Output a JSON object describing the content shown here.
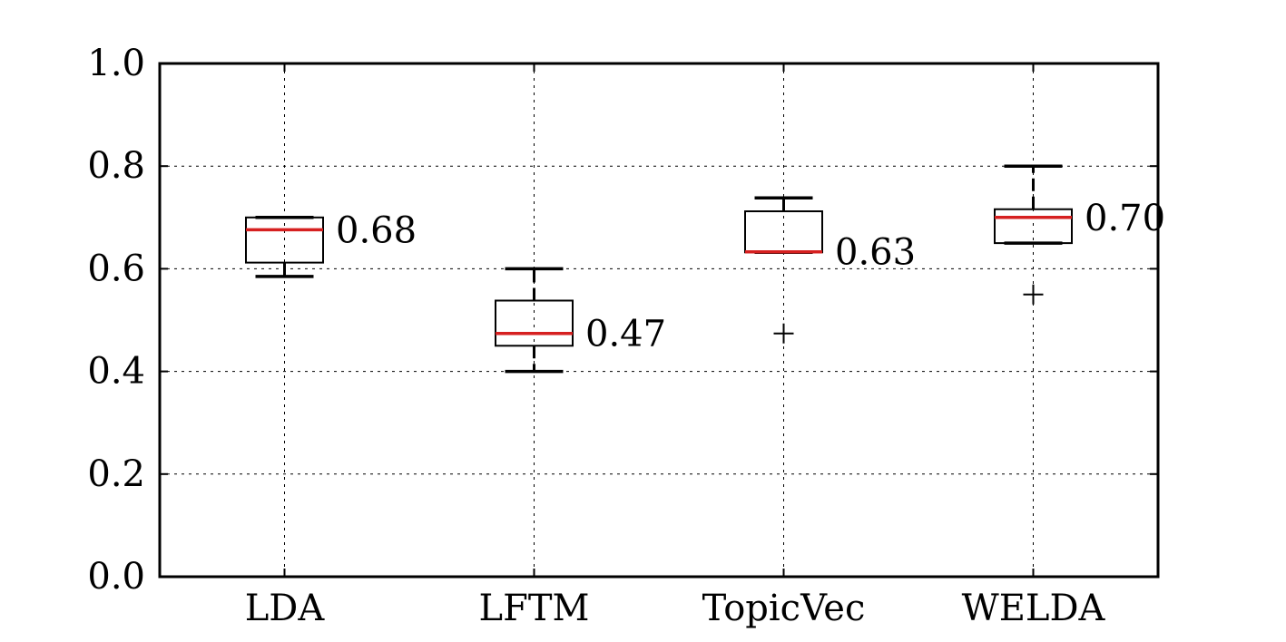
{
  "chart_data": {
    "type": "box",
    "title": "",
    "xlabel": "",
    "ylabel": "",
    "ylim": [
      0.0,
      1.0
    ],
    "yticks": [
      0.0,
      0.2,
      0.4,
      0.6,
      0.8,
      1.0
    ],
    "ytick_labels": [
      "0.0",
      "0.2",
      "0.4",
      "0.6",
      "0.8",
      "1.0"
    ],
    "grid": true,
    "categories": [
      "LDA",
      "LFTM",
      "TopicVec",
      "WELDA"
    ],
    "boxes": [
      {
        "name": "LDA",
        "whisker_low": 0.585,
        "q1": 0.612,
        "median": 0.676,
        "q3": 0.7,
        "whisker_high": 0.7,
        "outliers": [],
        "median_label": "0.68"
      },
      {
        "name": "LFTM",
        "whisker_low": 0.4,
        "q1": 0.45,
        "median": 0.474,
        "q3": 0.538,
        "whisker_high": 0.6,
        "outliers": [],
        "median_label": "0.47"
      },
      {
        "name": "TopicVec",
        "whisker_low": 0.632,
        "q1": 0.632,
        "median": 0.633,
        "q3": 0.712,
        "whisker_high": 0.738,
        "outliers": [
          0.474
        ],
        "median_label": "0.63"
      },
      {
        "name": "WELDA",
        "whisker_low": 0.65,
        "q1": 0.65,
        "median": 0.7,
        "q3": 0.716,
        "whisker_high": 0.8,
        "outliers": [
          0.55
        ],
        "median_label": "0.70"
      }
    ],
    "colors": {
      "median": "#d62020",
      "box": "#000000",
      "grid": "#000000"
    }
  }
}
